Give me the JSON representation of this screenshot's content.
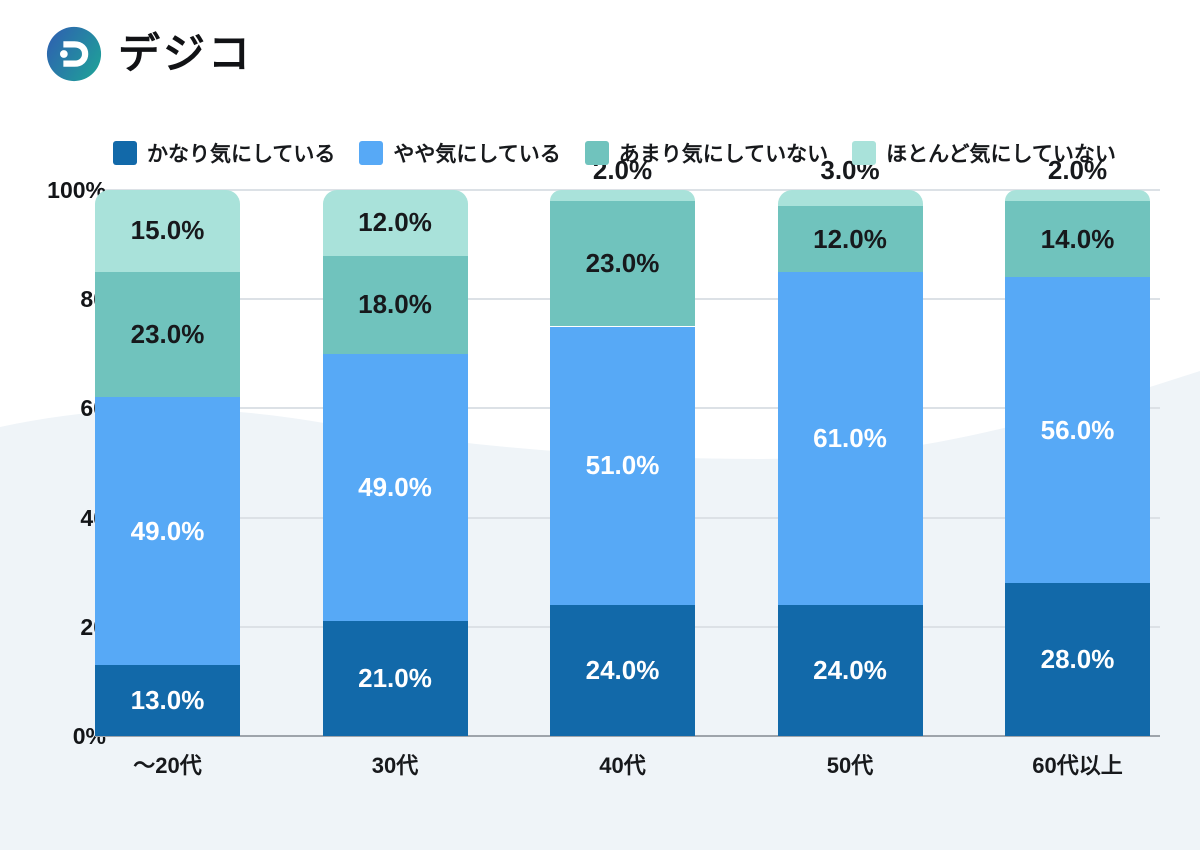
{
  "logo": {
    "brand_text": "デジコ"
  },
  "chart_data": {
    "type": "bar",
    "stacked": true,
    "title": "",
    "categories": [
      "～20代",
      "30代",
      "40代",
      "50代",
      "60代以上"
    ],
    "series": [
      {
        "name": "かなり気にしている",
        "color": "#1269A9",
        "label_color": "#ffffff",
        "values": [
          13.0,
          21.0,
          24.0,
          24.0,
          28.0
        ]
      },
      {
        "name": "やや気にしている",
        "color": "#57A9F6",
        "label_color": "#ffffff",
        "values": [
          49.0,
          49.0,
          51.0,
          61.0,
          56.0
        ]
      },
      {
        "name": "あまり気にしていない",
        "color": "#70C3BD",
        "label_color": "#17191c",
        "values": [
          23.0,
          18.0,
          23.0,
          12.0,
          14.0
        ]
      },
      {
        "name": "ほとんど気にしていない",
        "color": "#A9E2DA",
        "label_color": "#17191c",
        "values": [
          15.0,
          12.0,
          2.0,
          3.0,
          2.0
        ]
      }
    ],
    "value_labels": [
      [
        "13.0%",
        "21.0%",
        "24.0%",
        "24.0%",
        "28.0%"
      ],
      [
        "49.0%",
        "49.0%",
        "51.0%",
        "61.0%",
        "56.0%"
      ],
      [
        "23.0%",
        "18.0%",
        "23.0%",
        "12.0%",
        "14.0%"
      ],
      [
        "15.0%",
        "12.0%",
        "2.0%",
        "3.0%",
        "2.0%"
      ]
    ],
    "ylim": [
      0,
      100
    ],
    "yticks": [
      {
        "value": 0,
        "label": "0%"
      },
      {
        "value": 20,
        "label": "20"
      },
      {
        "value": 40,
        "label": "40"
      },
      {
        "value": 60,
        "label": "60"
      },
      {
        "value": 80,
        "label": "80"
      },
      {
        "value": 100,
        "label": "100%"
      }
    ],
    "grid": true,
    "legend_position": "top"
  }
}
